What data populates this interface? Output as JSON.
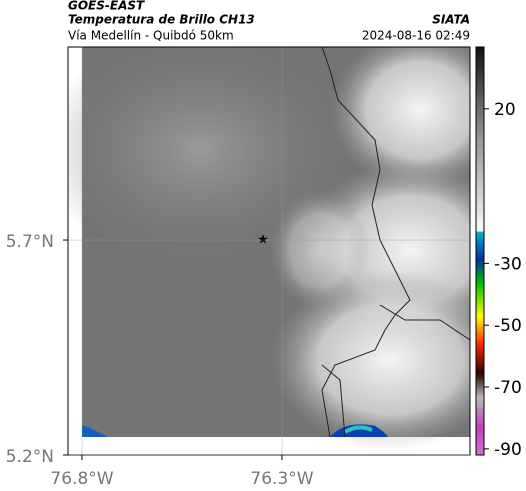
{
  "header": {
    "source": "GOES-EAST",
    "title": "Temperatura de Brillo CH13",
    "org": "SIATA",
    "subtitle": "Vía Medellín - Quibdó 50km",
    "timestamp": "2024-08-16 02:49"
  },
  "map": {
    "lat_lim": [
      5.2,
      6.149
    ],
    "lon_lim": [
      -76.835,
      -75.83
    ],
    "lat_ticks": [
      {
        "value": 5.7,
        "label": "5.7°N"
      },
      {
        "value": 5.2,
        "label": "5.2°N"
      }
    ],
    "lon_ticks": [
      {
        "value": -76.8,
        "label": "76.8°W"
      },
      {
        "value": -76.3,
        "label": "76.3°W"
      }
    ]
  },
  "colorbar": {
    "lim": [
      -92,
      40
    ],
    "ticks": [
      20,
      -30,
      -50,
      -70,
      -90
    ]
  }
}
